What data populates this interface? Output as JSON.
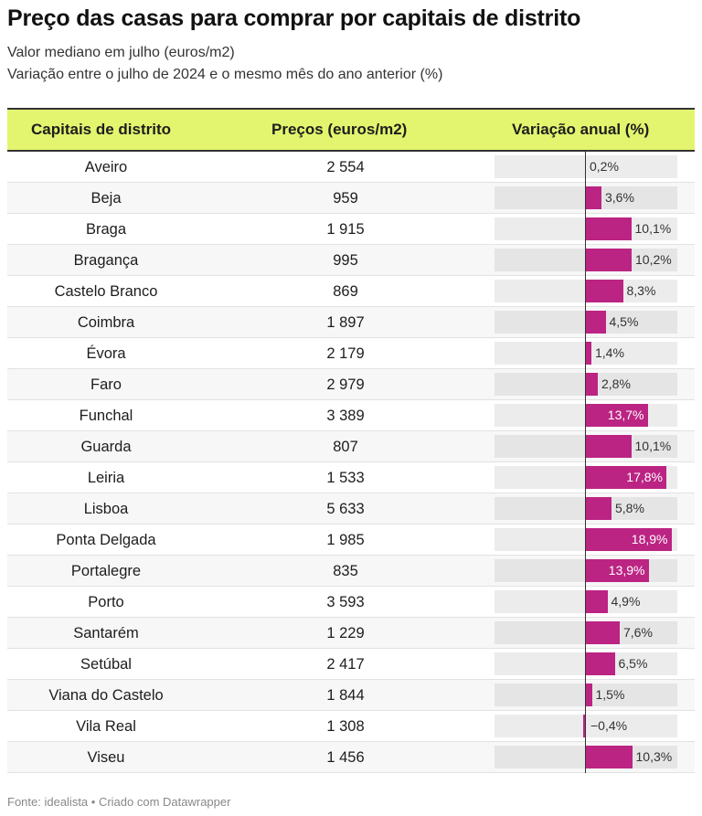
{
  "title": "Preço das casas para comprar por capitais de distrito",
  "subtitle1": "Valor mediano em julho (euros/m2)",
  "subtitle2": "Variação entre o julho de 2024 e o mesmo mês do ano anterior (%)",
  "footer": "Fonte: idealista • Criado com Datawrapper",
  "colors": {
    "bar": "#bb2483",
    "header": "#e3f56e",
    "bar_background": "#ececec"
  },
  "chart_data": {
    "type": "table",
    "columns": [
      "Capitais de distrito",
      "Preços (euros/m2)",
      "Variação anual (%)"
    ],
    "bar_range": [
      -20,
      20
    ],
    "rows": [
      {
        "city": "Aveiro",
        "price": "2 554",
        "change": 0.2,
        "change_label": "0,2%"
      },
      {
        "city": "Beja",
        "price": "959",
        "change": 3.6,
        "change_label": "3,6%"
      },
      {
        "city": "Braga",
        "price": "1 915",
        "change": 10.1,
        "change_label": "10,1%"
      },
      {
        "city": "Bragança",
        "price": "995",
        "change": 10.2,
        "change_label": "10,2%"
      },
      {
        "city": "Castelo Branco",
        "price": "869",
        "change": 8.3,
        "change_label": "8,3%"
      },
      {
        "city": "Coimbra",
        "price": "1 897",
        "change": 4.5,
        "change_label": "4,5%"
      },
      {
        "city": "Évora",
        "price": "2 179",
        "change": 1.4,
        "change_label": "1,4%"
      },
      {
        "city": "Faro",
        "price": "2 979",
        "change": 2.8,
        "change_label": "2,8%"
      },
      {
        "city": "Funchal",
        "price": "3 389",
        "change": 13.7,
        "change_label": "13,7%"
      },
      {
        "city": "Guarda",
        "price": "807",
        "change": 10.1,
        "change_label": "10,1%"
      },
      {
        "city": "Leiria",
        "price": "1 533",
        "change": 17.8,
        "change_label": "17,8%"
      },
      {
        "city": "Lisboa",
        "price": "5 633",
        "change": 5.8,
        "change_label": "5,8%"
      },
      {
        "city": "Ponta Delgada",
        "price": "1 985",
        "change": 18.9,
        "change_label": "18,9%"
      },
      {
        "city": "Portalegre",
        "price": "835",
        "change": 13.9,
        "change_label": "13,9%"
      },
      {
        "city": "Porto",
        "price": "3 593",
        "change": 4.9,
        "change_label": "4,9%"
      },
      {
        "city": "Santarém",
        "price": "1 229",
        "change": 7.6,
        "change_label": "7,6%"
      },
      {
        "city": "Setúbal",
        "price": "2 417",
        "change": 6.5,
        "change_label": "6,5%"
      },
      {
        "city": "Viana do Castelo",
        "price": "1 844",
        "change": 1.5,
        "change_label": "1,5%"
      },
      {
        "city": "Vila Real",
        "price": "1 308",
        "change": -0.4,
        "change_label": "−0,4%"
      },
      {
        "city": "Viseu",
        "price": "1 456",
        "change": 10.3,
        "change_label": "10,3%"
      }
    ]
  }
}
